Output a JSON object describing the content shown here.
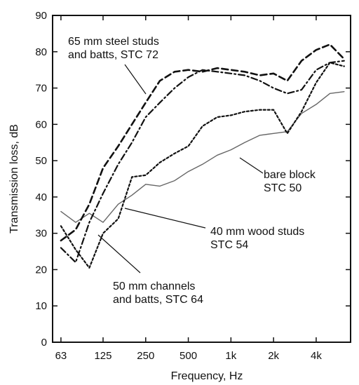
{
  "chart_data": {
    "type": "line",
    "title": "",
    "xlabel": "Frequency,  Hz",
    "ylabel": "Transmission loss, dB",
    "x_scale": "log",
    "x_unit": "Hz",
    "xlim": [
      55,
      7000
    ],
    "ylim": [
      0,
      90
    ],
    "x_ticks": [
      {
        "value": 63,
        "label": "63"
      },
      {
        "value": 125,
        "label": "125"
      },
      {
        "value": 250,
        "label": "250"
      },
      {
        "value": 500,
        "label": "500"
      },
      {
        "value": 1000,
        "label": "1k"
      },
      {
        "value": 2000,
        "label": "2k"
      },
      {
        "value": 4000,
        "label": "4k"
      }
    ],
    "y_ticks": [
      0,
      10,
      20,
      30,
      40,
      50,
      60,
      70,
      80,
      90
    ],
    "grid": false,
    "series": [
      {
        "name": "bare block STC 50",
        "style": "solid",
        "color": "#666666",
        "x": [
          63,
          80,
          100,
          125,
          160,
          200,
          250,
          315,
          400,
          500,
          630,
          800,
          1000,
          1250,
          1600,
          2000,
          2500,
          3150,
          4000,
          5000,
          6300
        ],
        "y": [
          36,
          33,
          35.5,
          33,
          38,
          40.5,
          43.5,
          43,
          44.5,
          47,
          49,
          51.5,
          53,
          55,
          57,
          57.5,
          58,
          63,
          65.5,
          68.5,
          69
        ]
      },
      {
        "name": "40 mm wood studs STC 54",
        "style": "dotted",
        "color": "#111111",
        "x": [
          63,
          80,
          100,
          125,
          160,
          200,
          250,
          315,
          400,
          500,
          630,
          800,
          1000,
          1250,
          1600,
          2000,
          2500,
          3150,
          4000,
          5000,
          6300
        ],
        "y": [
          32,
          25.5,
          20.5,
          30,
          34,
          45.5,
          46,
          49.5,
          52,
          54,
          59.5,
          62,
          62.5,
          63.5,
          64,
          64,
          57.5,
          63.5,
          71.5,
          77,
          76
        ]
      },
      {
        "name": "50 mm channels and batts, STC 64",
        "style": "dashdot",
        "color": "#111111",
        "x": [
          63,
          80,
          100,
          125,
          160,
          200,
          250,
          315,
          400,
          500,
          630,
          800,
          1000,
          1250,
          1600,
          2000,
          2500,
          3150,
          4000,
          5000,
          6300
        ],
        "y": [
          26,
          22,
          33,
          41,
          49,
          55,
          62,
          66,
          70,
          73,
          75,
          74.5,
          74,
          73.5,
          72,
          70,
          68.5,
          69.5,
          75,
          77,
          77.5
        ]
      },
      {
        "name": "65 mm steel studs and batts, STC 72",
        "style": "dashed",
        "color": "#111111",
        "x": [
          63,
          80,
          100,
          125,
          160,
          200,
          250,
          315,
          400,
          500,
          630,
          800,
          1000,
          1250,
          1600,
          2000,
          2500,
          3150,
          4000,
          5000,
          6300
        ],
        "y": [
          28,
          31,
          38,
          48,
          54,
          60,
          66,
          72,
          74.5,
          75,
          74.5,
          75.5,
          75,
          74.5,
          73.5,
          74,
          72,
          77.5,
          80.5,
          82,
          78
        ]
      }
    ],
    "annotations": [
      {
        "text": [
          "65 mm steel studs",
          "and batts, STC 72"
        ],
        "series": 3
      },
      {
        "text": [
          "bare block",
          "STC 50"
        ],
        "series": 0
      },
      {
        "text": [
          "40 mm wood studs",
          "STC 54"
        ],
        "series": 1
      },
      {
        "text": [
          "50 mm channels",
          "and batts, STC 64"
        ],
        "series": 2
      }
    ]
  }
}
